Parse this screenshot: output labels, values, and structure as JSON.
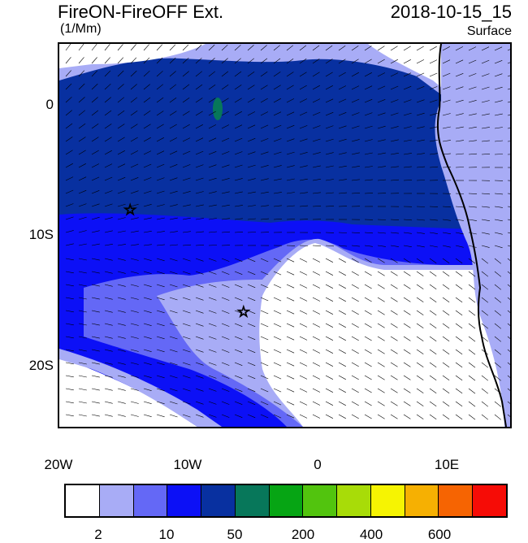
{
  "header": {
    "title": "FireON-FireOFF Ext.",
    "units": "(1/Mm)",
    "datetime": "2018-10-15_15",
    "level": "Surface"
  },
  "map": {
    "lon_range": [
      -20,
      15
    ],
    "lat_range": [
      -25,
      5
    ],
    "lat_labels": [
      "0",
      "10S",
      "20S"
    ],
    "lon_labels": [
      "20W",
      "10W",
      "0",
      "10E"
    ],
    "markers": [
      {
        "name": "star-marker-1",
        "lon": -14.5,
        "lat": -8
      },
      {
        "name": "star-marker-2",
        "lon": -5.7,
        "lat": -16
      }
    ]
  },
  "colorbar": {
    "colors": [
      "#ffffff",
      "#a8acf6",
      "#6468f6",
      "#0c10f6",
      "#0830a0",
      "#07775a",
      "#06a514",
      "#52c40e",
      "#a8dc08",
      "#f6f402",
      "#f6b002",
      "#f66402",
      "#f60c06"
    ],
    "labels": [
      "2",
      "10",
      "50",
      "200",
      "400",
      "600"
    ],
    "label_positions": [
      1,
      3,
      5,
      7,
      9,
      11
    ]
  },
  "field_colors": {
    "ocean_dark": "#0830a0",
    "band_blue": "#0c10f6",
    "band_mid": "#6468f6",
    "band_light": "#a8acf6",
    "plume_white": "#ffffff",
    "green_patch": "#07775a"
  }
}
